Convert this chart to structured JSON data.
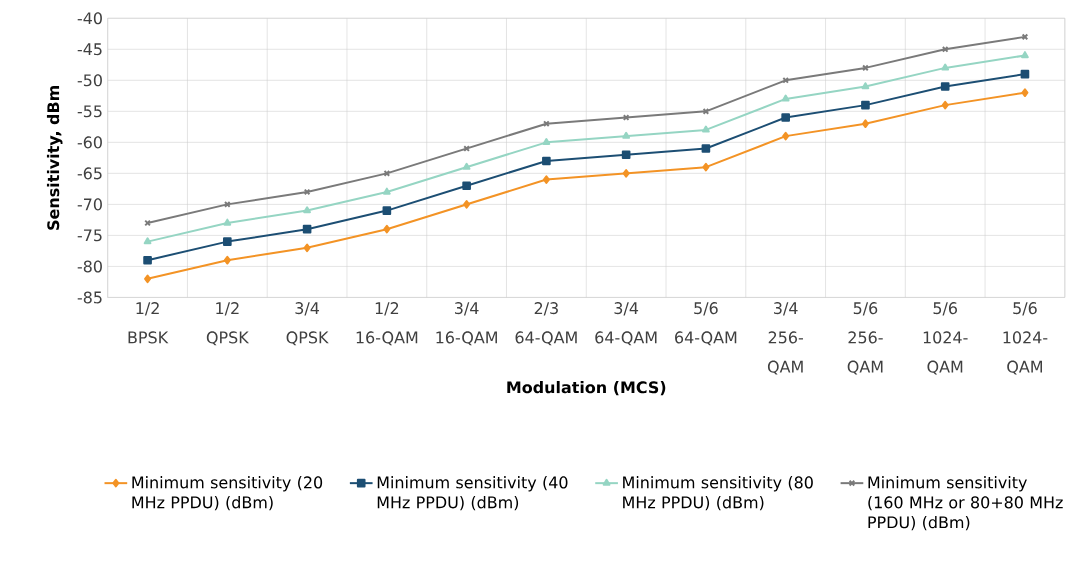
{
  "chart_data": {
    "type": "line",
    "xlabel": "Modulation (MCS)",
    "ylabel": "Sensitivity, dBm",
    "categories": [
      "1/2 BPSK",
      "1/2 QPSK",
      "3/4 QPSK",
      "1/2 16-QAM",
      "3/4 16-QAM",
      "2/3 64-QAM",
      "3/4 64-QAM",
      "5/6 64-QAM",
      "3/4 256-QAM",
      "5/6 256-QAM",
      "5/6 1024-QAM",
      "5/6 1024-QAM"
    ],
    "series": [
      {
        "name": "Minimum sensitivity (20 MHz PPDU)  (dBm)",
        "color": "#f39325",
        "marker": "diamond",
        "values": [
          -82,
          -79,
          -77,
          -74,
          -70,
          -66,
          -65,
          -64,
          -59,
          -57,
          -54,
          -52
        ]
      },
      {
        "name": "Minimum sensitivity (40 MHz PPDU) (dBm)",
        "color": "#1c4e73",
        "marker": "square",
        "values": [
          -79,
          -76,
          -74,
          -71,
          -67,
          -63,
          -62,
          -61,
          -56,
          -54,
          -51,
          -49
        ]
      },
      {
        "name": "Minimum sensitivity (80 MHz PPDU) (dBm)",
        "color": "#95d5c3",
        "marker": "triangle",
        "values": [
          -76,
          -73,
          -71,
          -68,
          -64,
          -60,
          -59,
          -58,
          -53,
          -51,
          -48,
          -46
        ]
      },
      {
        "name": "Minimum sensitivity (160 MHz or 80+80 MHz PPDU) (dBm)",
        "color": "#7a7a7a",
        "marker": "cross",
        "values": [
          -73,
          -70,
          -68,
          -65,
          -61,
          -57,
          -56,
          -55,
          -50,
          -48,
          -45,
          -43
        ]
      }
    ],
    "ylim": [
      -85,
      -40
    ],
    "yticks": [
      -85,
      -80,
      -75,
      -70,
      -65,
      -60,
      -55,
      -50,
      -45,
      -40
    ],
    "grid": true,
    "legend": "bottom"
  }
}
